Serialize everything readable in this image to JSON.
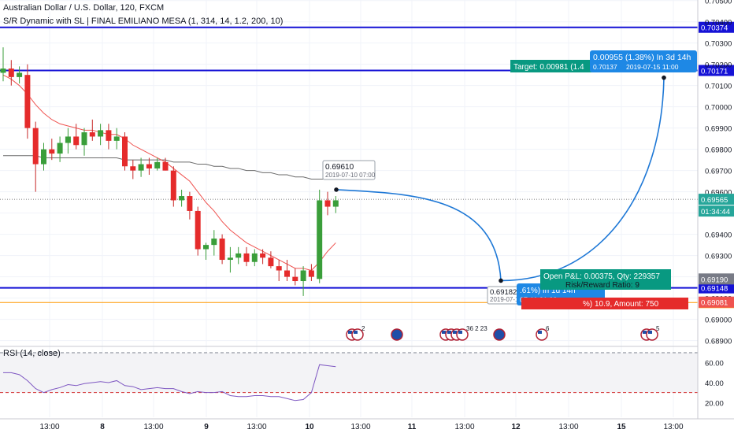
{
  "title": "Australian Dollar / U.S. Dollar, 120, FXCM",
  "study": "S/R Dynamic with SL | FINAL EMILIANO MESA (1, 314, 14, 1.2, 200, 10)",
  "rsi_label": "RSI (14, close)",
  "chart_data": {
    "type": "candlestick",
    "symbol": "AUDUSD",
    "timeframe": "120",
    "ylim": [
      0.6888,
      0.7051
    ],
    "price_ticks": [
      "0.70500",
      "0.70400",
      "0.70300",
      "0.70200",
      "0.70100",
      "0.70000",
      "0.69900",
      "0.69800",
      "0.69700",
      "0.69600",
      "0.69500",
      "0.69400",
      "0.69300",
      "0.69200",
      "0.69100",
      "0.69000",
      "0.68900"
    ],
    "time_ticks": [
      "13:00",
      "8",
      "13:00",
      "9",
      "13:00",
      "10",
      "13:00",
      "11",
      "13:00",
      "12",
      "13:00",
      "15",
      "13:00"
    ],
    "candles": [
      {
        "o": 0.7016,
        "h": 0.7028,
        "l": 0.7012,
        "c": 0.7018
      },
      {
        "o": 0.7018,
        "h": 0.7022,
        "l": 0.701,
        "c": 0.7014
      },
      {
        "o": 0.7014,
        "h": 0.7019,
        "l": 0.7011,
        "c": 0.7016
      },
      {
        "o": 0.7015,
        "h": 0.702,
        "l": 0.6985,
        "c": 0.699
      },
      {
        "o": 0.699,
        "h": 0.6993,
        "l": 0.696,
        "c": 0.6973
      },
      {
        "o": 0.6973,
        "h": 0.6983,
        "l": 0.697,
        "c": 0.698
      },
      {
        "o": 0.698,
        "h": 0.6985,
        "l": 0.6975,
        "c": 0.6978
      },
      {
        "o": 0.6978,
        "h": 0.6986,
        "l": 0.6974,
        "c": 0.6983
      },
      {
        "o": 0.6983,
        "h": 0.699,
        "l": 0.6978,
        "c": 0.6986
      },
      {
        "o": 0.6986,
        "h": 0.6992,
        "l": 0.698,
        "c": 0.6982
      },
      {
        "o": 0.6982,
        "h": 0.699,
        "l": 0.6977,
        "c": 0.6988
      },
      {
        "o": 0.6988,
        "h": 0.6994,
        "l": 0.6984,
        "c": 0.6986
      },
      {
        "o": 0.6986,
        "h": 0.6992,
        "l": 0.6982,
        "c": 0.6989
      },
      {
        "o": 0.6989,
        "h": 0.6992,
        "l": 0.698,
        "c": 0.6984
      },
      {
        "o": 0.6984,
        "h": 0.699,
        "l": 0.698,
        "c": 0.6986
      },
      {
        "o": 0.6986,
        "h": 0.6988,
        "l": 0.697,
        "c": 0.6972
      },
      {
        "o": 0.6972,
        "h": 0.6975,
        "l": 0.6966,
        "c": 0.697
      },
      {
        "o": 0.697,
        "h": 0.6976,
        "l": 0.6967,
        "c": 0.6973
      },
      {
        "o": 0.6973,
        "h": 0.6976,
        "l": 0.6968,
        "c": 0.6971
      },
      {
        "o": 0.6971,
        "h": 0.6976,
        "l": 0.697,
        "c": 0.6974
      },
      {
        "o": 0.6974,
        "h": 0.6976,
        "l": 0.697,
        "c": 0.697
      },
      {
        "o": 0.697,
        "h": 0.6972,
        "l": 0.6953,
        "c": 0.6956
      },
      {
        "o": 0.6956,
        "h": 0.6961,
        "l": 0.6953,
        "c": 0.6958
      },
      {
        "o": 0.6958,
        "h": 0.696,
        "l": 0.6947,
        "c": 0.6951
      },
      {
        "o": 0.6951,
        "h": 0.6953,
        "l": 0.693,
        "c": 0.6933
      },
      {
        "o": 0.6933,
        "h": 0.6936,
        "l": 0.6928,
        "c": 0.6935
      },
      {
        "o": 0.6935,
        "h": 0.6942,
        "l": 0.693,
        "c": 0.6938
      },
      {
        "o": 0.6938,
        "h": 0.694,
        "l": 0.6926,
        "c": 0.6928
      },
      {
        "o": 0.6928,
        "h": 0.6934,
        "l": 0.6922,
        "c": 0.6929
      },
      {
        "o": 0.6929,
        "h": 0.6934,
        "l": 0.6926,
        "c": 0.6931
      },
      {
        "o": 0.6931,
        "h": 0.6934,
        "l": 0.6925,
        "c": 0.6927
      },
      {
        "o": 0.6927,
        "h": 0.6933,
        "l": 0.6925,
        "c": 0.6931
      },
      {
        "o": 0.6931,
        "h": 0.6933,
        "l": 0.6926,
        "c": 0.6929
      },
      {
        "o": 0.6929,
        "h": 0.6932,
        "l": 0.6924,
        "c": 0.6925
      },
      {
        "o": 0.6925,
        "h": 0.6928,
        "l": 0.6918,
        "c": 0.6923
      },
      {
        "o": 0.6923,
        "h": 0.6928,
        "l": 0.6918,
        "c": 0.692
      },
      {
        "o": 0.692,
        "h": 0.6924,
        "l": 0.6916,
        "c": 0.6918
      },
      {
        "o": 0.6918,
        "h": 0.6925,
        "l": 0.6911,
        "c": 0.6923
      },
      {
        "o": 0.6923,
        "h": 0.6926,
        "l": 0.6918,
        "c": 0.692
      },
      {
        "o": 0.6919,
        "h": 0.6961,
        "l": 0.6917,
        "c": 0.6956
      },
      {
        "o": 0.6956,
        "h": 0.696,
        "l": 0.6949,
        "c": 0.6953
      },
      {
        "o": 0.6953,
        "h": 0.6958,
        "l": 0.695,
        "c": 0.6956
      }
    ],
    "ema_fast": [
      0.7015,
      0.7013,
      0.701,
      0.7006,
      0.7001,
      0.6997,
      0.6994,
      0.6992,
      0.6991,
      0.699,
      0.6989,
      0.6989,
      0.6988,
      0.6987,
      0.6987,
      0.6985,
      0.6982,
      0.698,
      0.6978,
      0.6976,
      0.6974,
      0.6971,
      0.6968,
      0.6965,
      0.696,
      0.6955,
      0.6951,
      0.6946,
      0.6942,
      0.6939,
      0.6936,
      0.6934,
      0.6932,
      0.693,
      0.6928,
      0.6926,
      0.6924,
      0.6924,
      0.6923,
      0.6927,
      0.6932,
      0.6936
    ],
    "ma_slow": [
      0.6977,
      0.6977,
      0.6977,
      0.6977,
      0.6977,
      0.6976,
      0.6976,
      0.6976,
      0.6976,
      0.6976,
      0.6976,
      0.6976,
      0.6976,
      0.6976,
      0.6976,
      0.6975,
      0.6975,
      0.6975,
      0.6975,
      0.6975,
      0.6975,
      0.6974,
      0.6974,
      0.6974,
      0.6973,
      0.6973,
      0.6972,
      0.6972,
      0.6971,
      0.6971,
      0.697,
      0.697,
      0.6969,
      0.6969,
      0.6968,
      0.6968,
      0.6967,
      0.6967,
      0.6966,
      0.6966,
      0.6966,
      0.6966
    ],
    "levels": [
      {
        "price": 0.70374,
        "label": "0.70374",
        "color": "#1512d6"
      },
      {
        "price": 0.70171,
        "label": "0.70171",
        "color": "#1512d6"
      },
      {
        "price": 0.69148,
        "label": "0.69148",
        "color": "#1512d6"
      },
      {
        "price": 0.69079,
        "label": "0.69079",
        "color": "#ff9800"
      }
    ],
    "axis_labels": [
      {
        "price": 0.69565,
        "label": "0.69565",
        "bg": "#26a69a"
      },
      {
        "timer": "01:34:44",
        "bg": "#26a69a"
      },
      {
        "price": 0.6919,
        "label": "0.69190",
        "bg": "#787b86"
      },
      {
        "price": 0.69081,
        "label": "0.69081",
        "bg": "#ef5350"
      }
    ],
    "position": {
      "entry": 0.6919,
      "target": 0.70171,
      "stop": 0.69081,
      "target_label": "Target: 0.00981 (1.4",
      "pl_label": "Open P&L: 0.00375, Qty: 229357",
      "rr_label": "Risk/Reward Ratio: 9",
      "stop_label": "%) 10.9, Amount: 750"
    },
    "forecast": {
      "start": {
        "price": 0.6961,
        "label": "0.69610",
        "date": "2019-07-10 07:00"
      },
      "mid": {
        "price": 0.69182,
        "label": "0.69182",
        "date": "2019-07-11 21:00",
        "bubble1": ".61%) In 1d 14h",
        "bubble2": "07-11  21:00"
      },
      "end": {
        "price": 0.70137,
        "bubble1": "0.00955 (1.38%) In 3d 14h",
        "bubble2": "0.70137",
        "bubble3": "2019-07-15  11:00"
      }
    },
    "events": [
      {
        "flags": [
          "US",
          "US"
        ],
        "count": "2"
      },
      {
        "flags": [
          "AU"
        ],
        "count": ""
      },
      {
        "flags": [
          "US",
          "US",
          "US",
          "US"
        ],
        "count": "36 2 23"
      },
      {
        "flags": [
          "AU"
        ],
        "count": ""
      },
      {
        "flags": [
          "US"
        ],
        "count": "6"
      },
      {
        "flags": [
          "US",
          "US"
        ],
        "count": "5"
      }
    ],
    "rsi": {
      "ticks": [
        "60.00",
        "40.00",
        "20.00"
      ],
      "upper": 70,
      "lower": 30,
      "values": [
        50,
        50,
        48,
        42,
        34,
        30,
        33,
        35,
        38,
        37,
        39,
        40,
        41,
        40,
        42,
        37,
        36,
        33,
        34,
        35,
        34,
        34,
        31,
        29,
        31,
        30,
        30,
        31,
        27,
        26,
        26,
        27,
        27,
        26,
        26,
        24,
        22,
        23,
        30,
        58,
        57,
        56
      ]
    }
  }
}
